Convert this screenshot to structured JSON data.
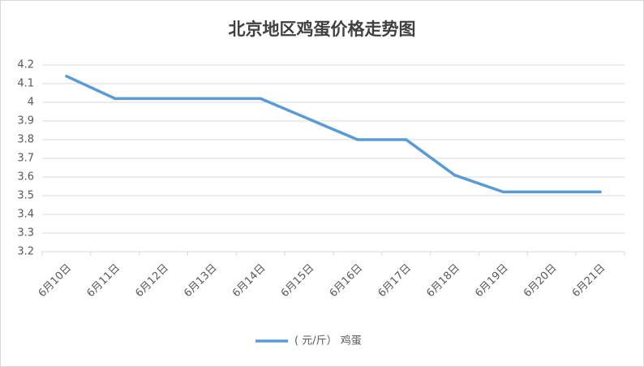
{
  "chart_data": {
    "type": "line",
    "title": "北京地区鸡蛋价格走势图",
    "categories": [
      "6月10日",
      "6月11日",
      "6月12日",
      "6月13日",
      "6月14日",
      "6月15日",
      "6月16日",
      "6月17日",
      "6月18日",
      "6月19日",
      "6月20日",
      "6月21日"
    ],
    "series": [
      {
        "name": "( 元/斤） 鸡蛋",
        "color": "#5b9bd5",
        "values": [
          4.14,
          4.02,
          4.02,
          4.02,
          4.02,
          3.91,
          3.8,
          3.8,
          3.61,
          3.52,
          3.52,
          3.52
        ]
      }
    ],
    "ylim": [
      3.2,
      4.2
    ],
    "yticks": [
      3.2,
      3.3,
      3.4,
      3.5,
      3.6,
      3.7,
      3.8,
      3.9,
      4,
      4.1,
      4.2
    ],
    "grid": true,
    "legend": "bottom"
  }
}
